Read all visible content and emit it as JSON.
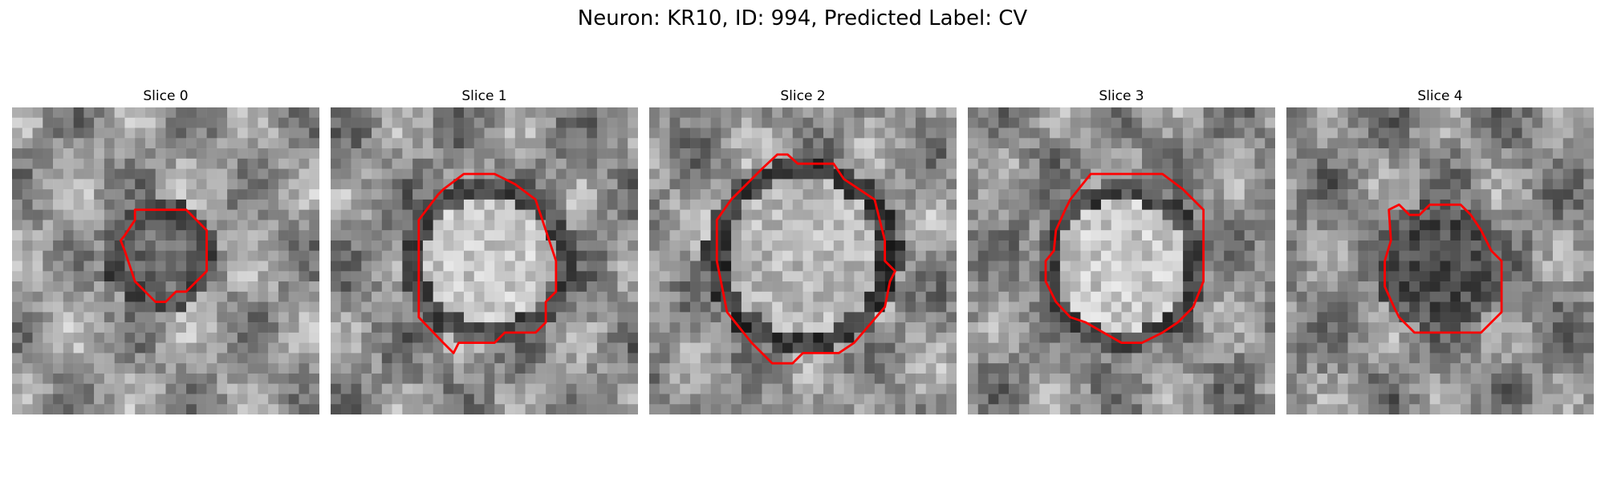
{
  "figure": {
    "title": "Neuron: KR10, ID: 994, Predicted Label: CV"
  },
  "colors": {
    "contour": "#ff0000"
  },
  "panels": [
    {
      "label": "Slice 0"
    },
    {
      "label": "Slice 1"
    },
    {
      "label": "Slice 2"
    },
    {
      "label": "Slice 3"
    },
    {
      "label": "Slice 4"
    }
  ]
}
